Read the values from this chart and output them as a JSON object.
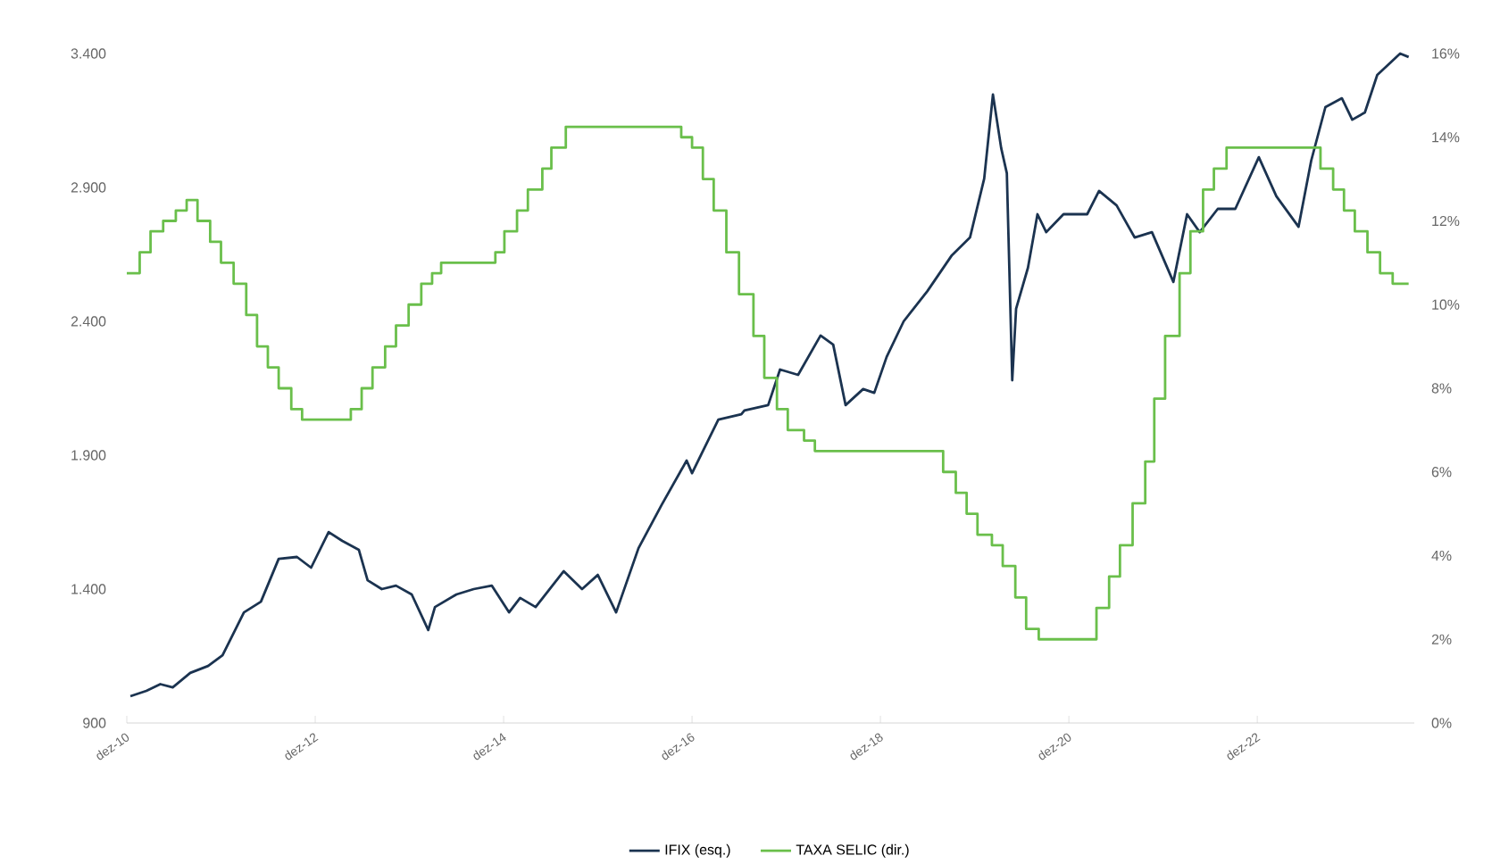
{
  "chart_data": {
    "type": "line",
    "xlim": [
      "2010-12-01",
      "2024-08-01"
    ],
    "xticks": [
      {
        "value": "2010-12-01",
        "label": "dez-10"
      },
      {
        "value": "2012-12-01",
        "label": "dez-12"
      },
      {
        "value": "2014-12-01",
        "label": "dez-14"
      },
      {
        "value": "2016-12-01",
        "label": "dez-16"
      },
      {
        "value": "2018-12-01",
        "label": "dez-18"
      },
      {
        "value": "2020-12-01",
        "label": "dez-20"
      },
      {
        "value": "2022-12-01",
        "label": "dez-22"
      }
    ],
    "ylim": [
      900,
      3400
    ],
    "yticks": [
      900,
      {
        "value": 1400,
        "label": "1.400"
      },
      {
        "value": 1900,
        "label": "1.900"
      },
      {
        "value": 2400,
        "label": "2.400"
      },
      {
        "value": 2900,
        "label": "2.900"
      },
      {
        "value": 3400,
        "label": "3.400"
      }
    ],
    "y2lim": [
      0,
      16
    ],
    "y2ticks": [
      {
        "value": 0,
        "label": "0%"
      },
      {
        "value": 2,
        "label": "2%"
      },
      {
        "value": 4,
        "label": "4%"
      },
      {
        "value": 6,
        "label": "6%"
      },
      {
        "value": 8,
        "label": "8%"
      },
      {
        "value": 10,
        "label": "10%"
      },
      {
        "value": 12,
        "label": "12%"
      },
      {
        "value": 14,
        "label": "14%"
      },
      {
        "value": 16,
        "label": "16%"
      }
    ],
    "legend": "bottom",
    "series": [
      {
        "name": "IFIX (esq.)",
        "color": "#1b3350",
        "x": [
          "2010-12-15",
          "2011-02-15",
          "2011-04-10",
          "2011-05-28",
          "2011-08-04",
          "2011-10-12",
          "2011-12-07",
          "2012-02-28",
          "2012-05-04",
          "2012-07-12",
          "2012-09-21",
          "2012-11-15",
          "2013-01-22",
          "2013-03-16",
          "2013-05-19",
          "2013-06-22",
          "2013-08-16",
          "2013-10-10",
          "2013-12-10",
          "2014-02-12",
          "2014-03-10",
          "2014-06-01",
          "2014-08-07",
          "2014-10-16",
          "2014-12-22",
          "2015-02-03",
          "2015-04-04",
          "2015-07-22",
          "2015-10-01",
          "2015-12-01",
          "2016-02-10",
          "2016-05-07",
          "2016-08-04",
          "2016-11-10",
          "2016-12-01",
          "2017-03-13",
          "2017-06-10",
          "2017-06-22",
          "2017-09-22",
          "2017-11-07",
          "2018-01-16",
          "2018-04-13",
          "2018-06-01",
          "2018-07-19",
          "2018-09-25",
          "2018-11-07",
          "2018-12-25",
          "2019-03-01",
          "2019-06-01",
          "2019-09-04",
          "2019-11-13",
          "2020-01-07",
          "2020-02-10",
          "2020-03-13",
          "2020-04-04",
          "2020-04-25",
          "2020-05-10",
          "2020-06-25",
          "2020-08-01",
          "2020-09-04",
          "2020-11-10",
          "2021-02-10",
          "2021-03-28",
          "2021-06-04",
          "2021-08-13",
          "2021-10-19",
          "2022-01-10",
          "2022-03-04",
          "2022-04-22",
          "2022-07-01",
          "2022-09-07",
          "2022-12-07",
          "2023-02-13",
          "2023-05-10",
          "2023-06-28",
          "2023-08-22",
          "2023-10-25",
          "2023-12-04",
          "2024-01-22",
          "2024-03-10",
          "2024-06-07",
          "2024-07-10"
        ],
        "values": [
          1000,
          1020,
          1045,
          1033,
          1087,
          1113,
          1153,
          1313,
          1353,
          1513,
          1520,
          1480,
          1613,
          1580,
          1547,
          1433,
          1400,
          1413,
          1380,
          1247,
          1333,
          1380,
          1400,
          1413,
          1313,
          1367,
          1333,
          1467,
          1400,
          1453,
          1313,
          1553,
          1713,
          1880,
          1833,
          2033,
          2053,
          2067,
          2087,
          2220,
          2200,
          2347,
          2313,
          2087,
          2147,
          2133,
          2267,
          2400,
          2513,
          2647,
          2713,
          2933,
          3247,
          3047,
          2953,
          2180,
          2447,
          2600,
          2800,
          2733,
          2800,
          2800,
          2887,
          2833,
          2713,
          2733,
          2547,
          2800,
          2733,
          2820,
          2820,
          3013,
          2867,
          2753,
          3000,
          3200,
          3233,
          3153,
          3180,
          3320,
          3400,
          3387
        ]
      },
      {
        "name": "TAXA SELIC (dir.)",
        "type": "step",
        "axis": "y2",
        "color": "#6abf4b",
        "x": [
          "2010-12-01",
          "2011-01-20",
          "2011-03-03",
          "2011-04-21",
          "2011-06-09",
          "2011-07-21",
          "2011-09-01",
          "2011-10-20",
          "2011-12-01",
          "2012-01-19",
          "2012-03-08",
          "2012-04-19",
          "2012-05-31",
          "2012-07-12",
          "2012-08-30",
          "2012-10-11",
          "2013-04-18",
          "2013-05-30",
          "2013-07-11",
          "2013-08-29",
          "2013-10-10",
          "2013-11-28",
          "2014-01-16",
          "2014-02-27",
          "2014-04-03",
          "2014-10-30",
          "2014-12-04",
          "2015-01-22",
          "2015-03-05",
          "2015-04-30",
          "2015-06-04",
          "2015-07-30",
          "2016-10-20",
          "2016-12-01",
          "2017-01-12",
          "2017-02-23",
          "2017-04-13",
          "2017-06-01",
          "2017-07-27",
          "2017-09-07",
          "2017-10-26",
          "2017-12-07",
          "2018-02-08",
          "2018-03-22",
          "2019-08-01",
          "2019-09-19",
          "2019-10-31",
          "2019-12-12",
          "2020-02-06",
          "2020-03-19",
          "2020-05-07",
          "2020-06-18",
          "2020-08-06",
          "2021-03-18",
          "2021-05-06",
          "2021-06-17",
          "2021-08-05",
          "2021-09-23",
          "2021-10-28",
          "2021-12-09",
          "2022-02-03",
          "2022-03-17",
          "2022-05-05",
          "2022-06-16",
          "2022-08-04",
          "2023-08-03",
          "2023-09-21",
          "2023-11-02",
          "2023-12-14",
          "2024-02-01",
          "2024-03-21",
          "2024-05-09",
          "2024-07-10"
        ],
        "values": [
          10.75,
          11.25,
          11.75,
          12.0,
          12.25,
          12.5,
          12.0,
          11.5,
          11.0,
          10.5,
          9.75,
          9.0,
          8.5,
          8.0,
          7.5,
          7.25,
          7.5,
          8.0,
          8.5,
          9.0,
          9.5,
          10.0,
          10.5,
          10.75,
          11.0,
          11.25,
          11.75,
          12.25,
          12.75,
          13.25,
          13.75,
          14.25,
          14.0,
          13.75,
          13.0,
          12.25,
          11.25,
          10.25,
          9.25,
          8.25,
          7.5,
          7.0,
          6.75,
          6.5,
          6.0,
          5.5,
          5.0,
          4.5,
          4.25,
          3.75,
          3.0,
          2.25,
          2.0,
          2.75,
          3.5,
          4.25,
          5.25,
          6.25,
          7.75,
          9.25,
          10.75,
          11.75,
          12.75,
          13.25,
          13.75,
          13.25,
          12.75,
          12.25,
          11.75,
          11.25,
          10.75,
          10.5,
          10.5
        ]
      }
    ]
  }
}
